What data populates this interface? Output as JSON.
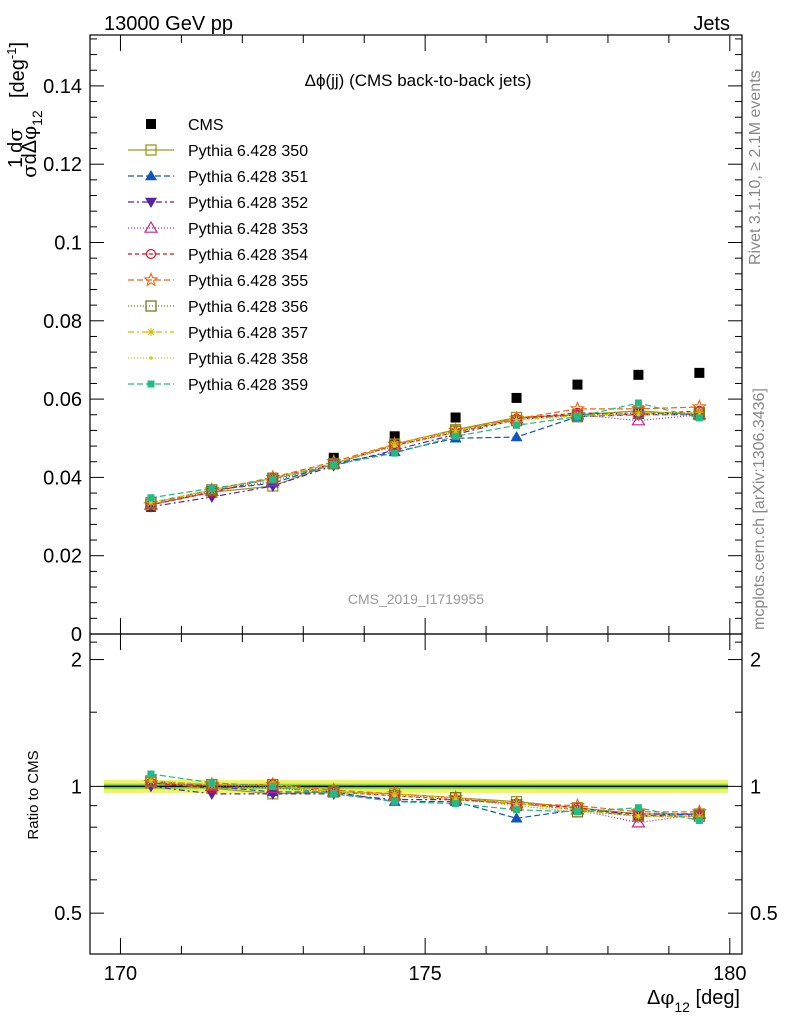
{
  "header": {
    "left": "13000 GeV pp",
    "right": "Jets"
  },
  "side_text": {
    "rivet": "Rivet 3.1.10, ≥ 2.1M events",
    "mcplots": "mcplots.cern.ch [arXiv:1306.3436]"
  },
  "chart_data": [
    {
      "type": "scatter",
      "title": "Δϕ(jj) (CMS back-to-back jets)",
      "watermark": "CMS_2019_I1719955",
      "ylabel": "1/σ dσ/dΔϕ_12 [deg^-1]",
      "ylim": [
        0,
        0.153
      ],
      "xlim": [
        169.5,
        180.2
      ],
      "yticks": [
        0,
        0.02,
        0.04,
        0.06,
        0.08,
        0.1,
        0.12,
        0.14
      ],
      "ytick_labels": [
        "0",
        "0.02",
        "0.04",
        "0.06",
        "0.08",
        "0.1",
        "0.12",
        "0.14"
      ],
      "x": [
        170.5,
        171.5,
        172.5,
        173.5,
        174.5,
        175.5,
        176.5,
        177.5,
        178.5,
        179.5
      ],
      "legend_position": "top-left",
      "series": [
        {
          "name": "CMS",
          "color": "#000000",
          "marker": "filled-square",
          "dash": "none",
          "values": [
            0.0325,
            0.0365,
            0.0395,
            0.045,
            0.0505,
            0.0553,
            0.0603,
            0.0637,
            0.0662,
            0.0667
          ]
        },
        {
          "name": "Pythia 6.428 350",
          "color": "#9a9a20",
          "marker": "open-square",
          "dash": "solid",
          "values": [
            0.033,
            0.0362,
            0.0378,
            0.0435,
            0.0485,
            0.0522,
            0.0553,
            0.056,
            0.057,
            0.056
          ]
        },
        {
          "name": "Pythia 6.428 351",
          "color": "#1155bb",
          "marker": "filled-triangle-up",
          "dash": "6,3",
          "values": [
            0.0335,
            0.0368,
            0.0385,
            0.0435,
            0.0465,
            0.05,
            0.0503,
            0.0555,
            0.056,
            0.056
          ]
        },
        {
          "name": "Pythia 6.428 352",
          "color": "#5522aa",
          "marker": "filled-triangle-down",
          "dash": "6,3,2,3",
          "values": [
            0.0325,
            0.035,
            0.0378,
            0.043,
            0.047,
            0.051,
            0.0548,
            0.056,
            0.0565,
            0.056
          ]
        },
        {
          "name": "Pythia 6.428 353",
          "color": "#cc2288",
          "marker": "open-triangle-up",
          "dash": "1,2",
          "values": [
            0.033,
            0.0365,
            0.039,
            0.0435,
            0.048,
            0.0515,
            0.055,
            0.056,
            0.0545,
            0.056
          ]
        },
        {
          "name": "Pythia 6.428 354",
          "color": "#dd1122",
          "marker": "open-circle",
          "dash": "4,3",
          "values": [
            0.033,
            0.0362,
            0.0398,
            0.0435,
            0.0482,
            0.0515,
            0.055,
            0.0565,
            0.056,
            0.057
          ]
        },
        {
          "name": "Pythia 6.428 355",
          "color": "#ee6611",
          "marker": "open-star",
          "dash": "6,3",
          "values": [
            0.033,
            0.0368,
            0.04,
            0.044,
            0.0485,
            0.052,
            0.055,
            0.0575,
            0.0575,
            0.058
          ]
        },
        {
          "name": "Pythia 6.428 356",
          "color": "#777722",
          "marker": "open-square",
          "dash": "1,2",
          "values": [
            0.0335,
            0.0368,
            0.0398,
            0.0435,
            0.048,
            0.0518,
            0.0545,
            0.0555,
            0.0565,
            0.0565
          ]
        },
        {
          "name": "Pythia 6.428 357",
          "color": "#ccbb00",
          "marker": "small-star",
          "dash": "6,3,2,3",
          "values": [
            0.0335,
            0.0368,
            0.0398,
            0.0435,
            0.0485,
            0.052,
            0.0548,
            0.0558,
            0.0565,
            0.0565
          ]
        },
        {
          "name": "Pythia 6.428 358",
          "color": "#cccc22",
          "marker": "small-dot",
          "dash": "1,2",
          "values": [
            0.0335,
            0.0368,
            0.0395,
            0.0435,
            0.048,
            0.0515,
            0.0545,
            0.0555,
            0.056,
            0.056
          ]
        },
        {
          "name": "Pythia 6.428 359",
          "color": "#22bb88",
          "marker": "filled-square-small",
          "dash": "6,3",
          "values": [
            0.0348,
            0.0372,
            0.0395,
            0.0432,
            0.0462,
            0.0505,
            0.0533,
            0.0555,
            0.059,
            0.0552
          ]
        }
      ]
    },
    {
      "type": "line",
      "ylabel": "Ratio to CMS",
      "xlabel": "Δϕ_12 [deg]",
      "ylim": [
        0.4,
        2.3
      ],
      "yscale": "log",
      "xlim": [
        169.5,
        180.2
      ],
      "yticks": [
        0.5,
        1,
        2
      ],
      "ytick_labels": [
        "0.5",
        "1",
        "2"
      ],
      "xticks": [
        170,
        175,
        180
      ],
      "xtick_labels": [
        "170",
        "175",
        "180"
      ],
      "x": [
        170.5,
        171.5,
        172.5,
        173.5,
        174.5,
        175.5,
        176.5,
        177.5,
        178.5,
        179.5
      ],
      "band": {
        "center": 1.0,
        "inner": [
          0.985,
          1.015
        ],
        "outer": [
          0.965,
          1.035
        ],
        "inner_color": "#88dd44",
        "outer_color": "#eef266"
      },
      "series": [
        {
          "name": "Pythia 6.428 350",
          "values": [
            1.02,
            0.99,
            0.96,
            0.97,
            0.96,
            0.94,
            0.92,
            0.89,
            0.86,
            0.86
          ]
        },
        {
          "name": "Pythia 6.428 351",
          "values": [
            1.03,
            1.0,
            0.97,
            0.97,
            0.92,
            0.92,
            0.84,
            0.88,
            0.85,
            0.86
          ]
        },
        {
          "name": "Pythia 6.428 352",
          "values": [
            1.0,
            0.96,
            0.96,
            0.96,
            0.93,
            0.93,
            0.91,
            0.88,
            0.86,
            0.86
          ]
        },
        {
          "name": "Pythia 6.428 353",
          "values": [
            1.02,
            1.0,
            0.99,
            0.97,
            0.95,
            0.93,
            0.91,
            0.88,
            0.82,
            0.86
          ]
        },
        {
          "name": "Pythia 6.428 354",
          "values": [
            1.02,
            0.99,
            1.01,
            0.97,
            0.95,
            0.93,
            0.91,
            0.89,
            0.85,
            0.85
          ]
        },
        {
          "name": "Pythia 6.428 355",
          "values": [
            1.02,
            1.01,
            1.01,
            0.98,
            0.96,
            0.94,
            0.91,
            0.9,
            0.87,
            0.87
          ]
        },
        {
          "name": "Pythia 6.428 356",
          "values": [
            1.03,
            1.01,
            1.01,
            0.97,
            0.95,
            0.94,
            0.9,
            0.87,
            0.85,
            0.85
          ]
        },
        {
          "name": "Pythia 6.428 357",
          "values": [
            1.03,
            1.01,
            1.01,
            0.97,
            0.96,
            0.94,
            0.91,
            0.88,
            0.85,
            0.85
          ]
        },
        {
          "name": "Pythia 6.428 358",
          "values": [
            1.03,
            1.01,
            1.0,
            0.97,
            0.95,
            0.93,
            0.9,
            0.87,
            0.85,
            0.84
          ]
        },
        {
          "name": "Pythia 6.428 359",
          "values": [
            1.07,
            1.02,
            1.0,
            0.96,
            0.92,
            0.91,
            0.88,
            0.87,
            0.89,
            0.83
          ]
        }
      ]
    }
  ]
}
